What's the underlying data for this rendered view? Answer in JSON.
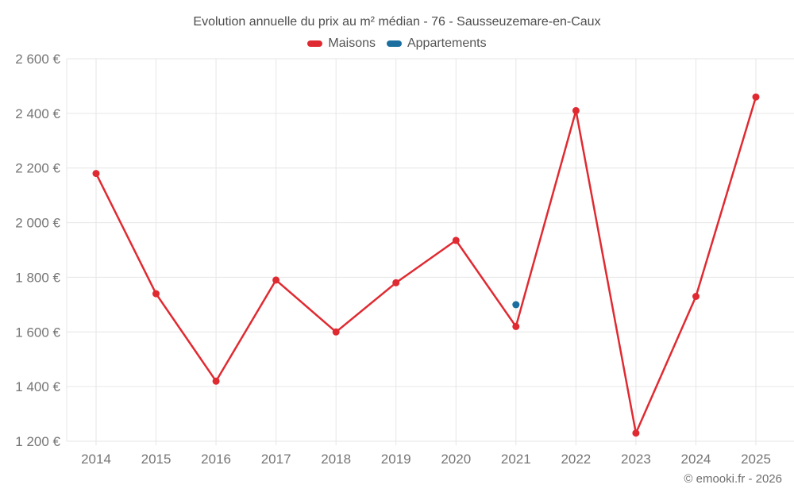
{
  "header": {
    "title": "Evolution annuelle du prix au m² médian - 76 - Sausseuzemare-en-Caux"
  },
  "footer": {
    "credit": "© emooki.fr - 2026"
  },
  "colors": {
    "maisons": "#e02a31",
    "appartements": "#1b6fa0",
    "grid": "#e6e6e6",
    "axis_text": "#757575",
    "title_text": "#4d4d4d"
  },
  "chart_data": {
    "type": "line",
    "title": "Evolution annuelle du prix au m² médian - 76 - Sausseuzemare-en-Caux",
    "categories": [
      "2014",
      "2015",
      "2016",
      "2017",
      "2018",
      "2019",
      "2020",
      "2021",
      "2022",
      "2023",
      "2024",
      "2025"
    ],
    "series": [
      {
        "name": "Maisons",
        "color": "#e02a31",
        "values": [
          2180,
          1740,
          1420,
          1790,
          1600,
          1780,
          1935,
          1620,
          2410,
          1230,
          1730,
          2460
        ]
      },
      {
        "name": "Appartements",
        "color": "#1b6fa0",
        "values": [
          null,
          null,
          null,
          null,
          null,
          null,
          null,
          1700,
          null,
          null,
          null,
          null
        ]
      }
    ],
    "xlabel": "",
    "ylabel": "",
    "ylim": [
      1200,
      2600
    ],
    "y_ticks": [
      {
        "value": 1200,
        "label": "1 200 €"
      },
      {
        "value": 1400,
        "label": "1 400 €"
      },
      {
        "value": 1600,
        "label": "1 600 €"
      },
      {
        "value": 1800,
        "label": "1 800 €"
      },
      {
        "value": 2000,
        "label": "2 000 €"
      },
      {
        "value": 2200,
        "label": "2 200 €"
      },
      {
        "value": 2400,
        "label": "2 400 €"
      },
      {
        "value": 2600,
        "label": "2 600 €"
      }
    ],
    "grid": true,
    "legend_position": "top"
  }
}
